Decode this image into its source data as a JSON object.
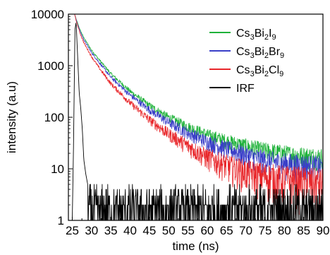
{
  "chart_data": {
    "type": "line",
    "xlabel": "time (ns)",
    "ylabel": "intensity (a.u)",
    "xlim": [
      24,
      90
    ],
    "ylim": [
      1,
      10000
    ],
    "yscale": "log",
    "x_ticks": [
      25,
      30,
      35,
      40,
      45,
      50,
      55,
      60,
      65,
      70,
      75,
      80,
      85,
      90
    ],
    "y_ticks": [
      1,
      10,
      100,
      1000,
      10000
    ],
    "y_tick_labels": [
      "1",
      "10",
      "100",
      "1000",
      "10000"
    ],
    "grid": false,
    "legend_position": "top-right",
    "series": [
      {
        "name": "Cs3Bi2I9",
        "legend": {
          "parts": [
            [
              "Cs",
              ""
            ],
            [
              "3",
              "sub"
            ],
            [
              "Bi",
              ""
            ],
            [
              "2",
              "sub"
            ],
            [
              "I",
              ""
            ],
            [
              "9",
              "sub"
            ]
          ]
        },
        "color": "#1fb23a",
        "x": [
          25.6,
          26,
          27,
          28,
          30,
          32,
          35,
          40,
          45,
          50,
          55,
          60,
          65,
          70,
          75,
          80,
          85,
          90
        ],
        "y": [
          10000,
          8000,
          5000,
          3500,
          2000,
          1300,
          700,
          320,
          170,
          100,
          66,
          46,
          35,
          28,
          23,
          20,
          18,
          17
        ]
      },
      {
        "name": "Cs3Bi2Br9",
        "legend": {
          "parts": [
            [
              "Cs",
              ""
            ],
            [
              "3",
              "sub"
            ],
            [
              "Bi",
              ""
            ],
            [
              "2",
              "sub"
            ],
            [
              "Br",
              ""
            ],
            [
              "9",
              "sub"
            ]
          ]
        },
        "color": "#3a3fc8",
        "x": [
          25.6,
          26,
          27,
          28,
          30,
          32,
          35,
          40,
          45,
          50,
          55,
          60,
          65,
          70,
          75,
          80,
          85,
          90
        ],
        "y": [
          10000,
          7800,
          4700,
          3200,
          1800,
          1150,
          600,
          270,
          140,
          80,
          50,
          34,
          25,
          19,
          15,
          13,
          12,
          11
        ]
      },
      {
        "name": "Cs3Bi2Cl9",
        "legend": {
          "parts": [
            [
              "Cs",
              ""
            ],
            [
              "3",
              "sub"
            ],
            [
              "Bi",
              ""
            ],
            [
              "2",
              "sub"
            ],
            [
              "Cl",
              ""
            ],
            [
              "9",
              "sub"
            ]
          ]
        },
        "color": "#e8262a",
        "x": [
          25.6,
          26,
          27,
          28,
          30,
          32,
          35,
          40,
          45,
          50,
          55,
          60,
          65,
          70,
          75,
          80,
          85,
          90
        ],
        "y": [
          10000,
          7500,
          4300,
          2800,
          1500,
          900,
          450,
          190,
          90,
          48,
          28,
          17,
          12,
          9,
          7.5,
          6.5,
          6,
          5.5
        ]
      },
      {
        "name": "IRF",
        "legend": {
          "parts": [
            [
              "IRF",
              ""
            ]
          ]
        },
        "color": "#000000",
        "x": [
          25.0,
          25.3,
          25.7,
          26.0,
          26.4,
          26.8,
          27.2,
          27.6,
          28.0,
          28.5,
          29.0,
          30,
          35,
          40,
          50,
          60,
          70,
          80,
          90
        ],
        "y": [
          1,
          20,
          5000,
          7000,
          1500,
          300,
          150,
          60,
          15,
          8,
          5,
          3,
          2.5,
          2.2,
          2.2,
          2.1,
          2.1,
          2.1,
          2.0
        ]
      }
    ]
  }
}
